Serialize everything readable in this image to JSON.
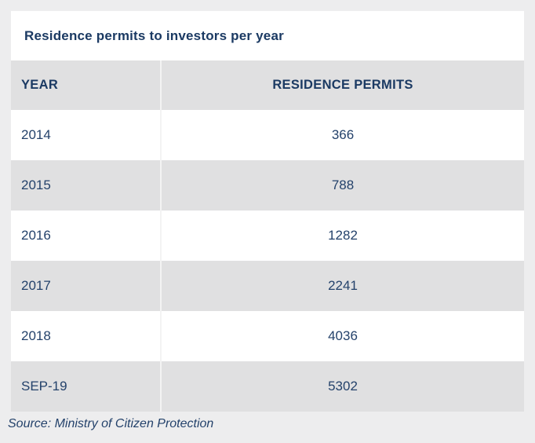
{
  "title": "Residence permits to investors per year",
  "table": {
    "columns": {
      "year": "YEAR",
      "permits": "RESIDENCE PERMITS"
    },
    "rows": [
      {
        "year": "2014",
        "permits": "366"
      },
      {
        "year": "2015",
        "permits": "788"
      },
      {
        "year": "2016",
        "permits": "1282"
      },
      {
        "year": "2017",
        "permits": "2241"
      },
      {
        "year": "2018",
        "permits": "4036"
      },
      {
        "year": "SEP-19",
        "permits": "5302"
      }
    ]
  },
  "source": "Source: Ministry of Citizen Protection",
  "colors": {
    "navy_text": "#1e3a63",
    "row_gray": "#e0e0e1",
    "outer_background": "#ededee",
    "row_white": "#ffffff",
    "column_divider": "#f3f3f3"
  },
  "chart_data": {
    "type": "table",
    "title": "Residence permits to investors per year",
    "columns": [
      "YEAR",
      "RESIDENCE PERMITS"
    ],
    "categories": [
      "2014",
      "2015",
      "2016",
      "2017",
      "2018",
      "SEP-19"
    ],
    "values": [
      366,
      788,
      1282,
      2241,
      4036,
      5302
    ],
    "source": "Source: Ministry of Citizen Protection"
  }
}
